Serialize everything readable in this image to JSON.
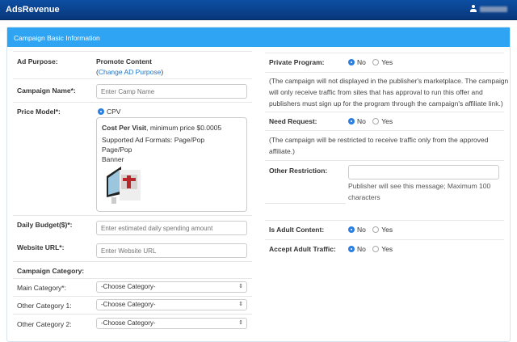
{
  "header": {
    "brand": "AdsRevenue",
    "user_icon": "user-icon"
  },
  "panel": {
    "title": "Campaign Basic Information"
  },
  "left": {
    "ad_purpose": {
      "label": "Ad Purpose:",
      "value": "Promote Content",
      "link_open": "(",
      "link": "Change AD Purpose",
      "link_close": ")"
    },
    "campaign_name": {
      "label": "Campaign Name*:",
      "placeholder": "Enter Camp Name"
    },
    "price_model": {
      "label": "Price Model*:",
      "option": "CPV",
      "selected": true,
      "title": "Cost Per Visit",
      "title_suffix": ", minimum price $0.0005",
      "formats": "Supported Ad Formats: Page/Pop",
      "lines": [
        "Page/Pop",
        "Banner"
      ]
    },
    "daily_budget": {
      "label": "Daily Budget($)*:",
      "placeholder": "Enter estimated daily spending amount"
    },
    "website_url": {
      "label": "Website URL*:",
      "placeholder": "Enter Website URL"
    },
    "category": {
      "label": "Campaign Category:",
      "rows": [
        {
          "label": "Main Category*:",
          "value": "-Choose Category-"
        },
        {
          "label": "Other Category 1:",
          "value": "-Choose Category-"
        },
        {
          "label": "Other Category 2:",
          "value": "-Choose Category-"
        }
      ]
    }
  },
  "right": {
    "private_program": {
      "label": "Private Program:",
      "no": "No",
      "yes": "Yes",
      "selected": "No"
    },
    "private_note": [
      "(The campaign will not displayed in the publisher's marketplace. The campaign",
      "will only receive traffic from sites that has approval to run this offer and",
      "publishers must sign up for the program through the campaign's affiliate link.)"
    ],
    "need_request": {
      "label": "Need Request:",
      "no": "No",
      "yes": "Yes",
      "selected": "No"
    },
    "need_note": [
      "(The campaign will be restricted to receive traffic only from the approved",
      "affiliate.)"
    ],
    "other_restriction": {
      "label": "Other Restriction:",
      "value": "",
      "help": [
        "Publisher will see this message; Maximum 100",
        "characters"
      ]
    },
    "adult_content": {
      "label": "Is Adult Content:",
      "no": "No",
      "yes": "Yes",
      "selected": "No"
    },
    "adult_traffic": {
      "label": "Accept Adult Traffic:",
      "no": "No",
      "yes": "Yes",
      "selected": "No"
    }
  }
}
